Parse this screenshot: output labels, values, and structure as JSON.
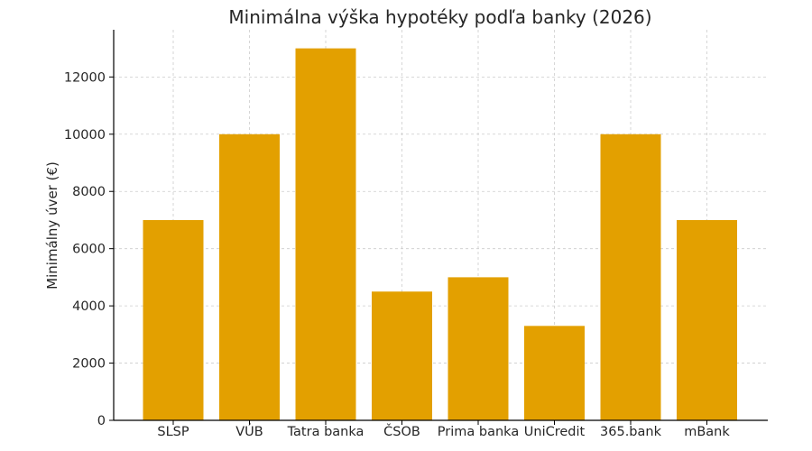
{
  "chart_data": {
    "type": "bar",
    "title": "Minimálna výška hypotéky podľa banky (2026)",
    "xlabel": "",
    "ylabel": "Minimálny úver (€)",
    "categories": [
      "SLSP",
      "VÚB",
      "Tatra banka",
      "ČSOB",
      "Prima banka",
      "UniCredit",
      "365.bank",
      "mBank"
    ],
    "values": [
      7000,
      10000,
      13000,
      4500,
      5000,
      3300,
      10000,
      7000
    ],
    "ylim": [
      0,
      13650
    ],
    "yticks": [
      0,
      2000,
      4000,
      6000,
      8000,
      10000,
      12000
    ],
    "grid": true,
    "legend": "none",
    "colors": {
      "bar": "#E3A000",
      "grid": "#cccccc",
      "axis": "#000000",
      "text": "#262626"
    }
  }
}
